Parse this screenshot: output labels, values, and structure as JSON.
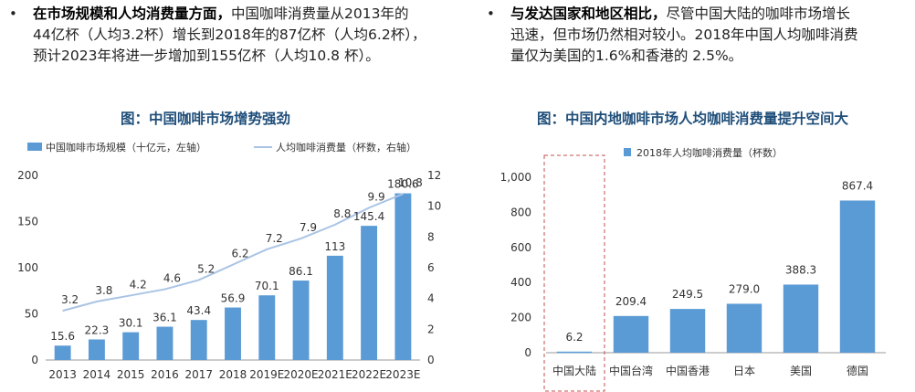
{
  "bullets": {
    "left": {
      "dot": "•",
      "heading": "在市场规模和人均消费量方面，",
      "lines": [
        "中国咖啡消费量从2013年的",
        "44亿杯（人均3.2杯）增长到2018年的87亿杯（人均6.2杯），",
        "预计2023年将进一步增加到155亿杯（人均10.8 杯）。"
      ]
    },
    "right": {
      "dot": "•",
      "heading": "与发达国家和地区相比，",
      "lines": [
        "尽管中国大陆的咖啡市场增长",
        "迅速，但市场仍然相对较小。2018年中国人均咖啡消费",
        "量仅为美国的1.6%和香港的 2.5%。"
      ]
    }
  },
  "chart_titles": {
    "left": "图：中国咖啡市场增势强劲",
    "right": "图：中国内地咖啡市场人均咖啡消费量提升空间大"
  },
  "chart_data": [
    {
      "type": "bar",
      "title": "图：中国咖啡市场增势强劲",
      "categories": [
        "2013",
        "2014",
        "2015",
        "2016",
        "2017",
        "2018",
        "2019E",
        "2020E",
        "2021E",
        "2022E",
        "2023E"
      ],
      "series": [
        {
          "name": "中国咖啡市场规模（十亿元，左轴）",
          "type": "bar",
          "axis": "left",
          "values": [
            15.6,
            22.3,
            30.1,
            36.1,
            43.4,
            56.9,
            70.1,
            86.1,
            113,
            145.4,
            180.6
          ],
          "color": "#5b9bd5"
        },
        {
          "name": "人均咖啡消费量（杯数，右轴）",
          "type": "line",
          "axis": "right",
          "values": [
            3.2,
            3.8,
            4.2,
            4.6,
            5.2,
            6.2,
            7.2,
            7.9,
            8.8,
            9.9,
            10.8
          ],
          "color": "#a9c4e4"
        }
      ],
      "y_left": {
        "ticks": [
          "0",
          "50",
          "100",
          "150",
          "200"
        ],
        "ylim": [
          0,
          200
        ]
      },
      "y_right": {
        "ticks": [
          "0",
          "2",
          "4",
          "6",
          "8",
          "10",
          "12"
        ],
        "ylim": [
          0,
          12
        ]
      },
      "grid": false,
      "legend": "top"
    },
    {
      "type": "bar",
      "title": "图：中国内地咖啡市场人均咖啡消费量提升空间大",
      "categories": [
        "中国大陆",
        "中国台湾",
        "中国香港",
        "日本",
        "美国",
        "德国"
      ],
      "series": [
        {
          "name": "2018年人均咖啡消费量（杯数）",
          "values": [
            6.2,
            209.4,
            249.5,
            279.0,
            388.3,
            867.4
          ],
          "labels": [
            "6.2",
            "209.4",
            "249.5",
            "279.0",
            "388.3",
            "867.4"
          ],
          "color": "#5b9bd5"
        }
      ],
      "y_left": {
        "ticks": [
          "0",
          "200",
          "400",
          "600",
          "800",
          "1,000"
        ],
        "ylim": [
          0,
          1000
        ]
      },
      "highlight_category": "中国大陆",
      "grid": false,
      "legend": "top"
    }
  ]
}
